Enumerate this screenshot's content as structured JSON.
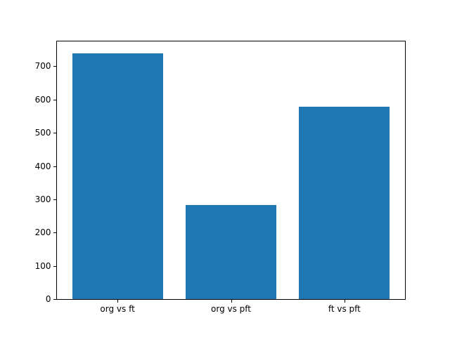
{
  "chart_data": {
    "type": "bar",
    "title": "",
    "xlabel": "",
    "ylabel": "",
    "categories": [
      "org vs ft",
      "org vs pft",
      "ft vs pft"
    ],
    "values": [
      740,
      284,
      578
    ],
    "yticks": [
      0,
      100,
      200,
      300,
      400,
      500,
      600,
      700
    ],
    "ylim": [
      0,
      777
    ],
    "bar_color": "#1f77b4",
    "bar_width_fraction": 0.8,
    "axis_color": "#000000",
    "text_color": "#000000",
    "background_color": "#ffffff",
    "grid": "off",
    "legend": "none"
  }
}
